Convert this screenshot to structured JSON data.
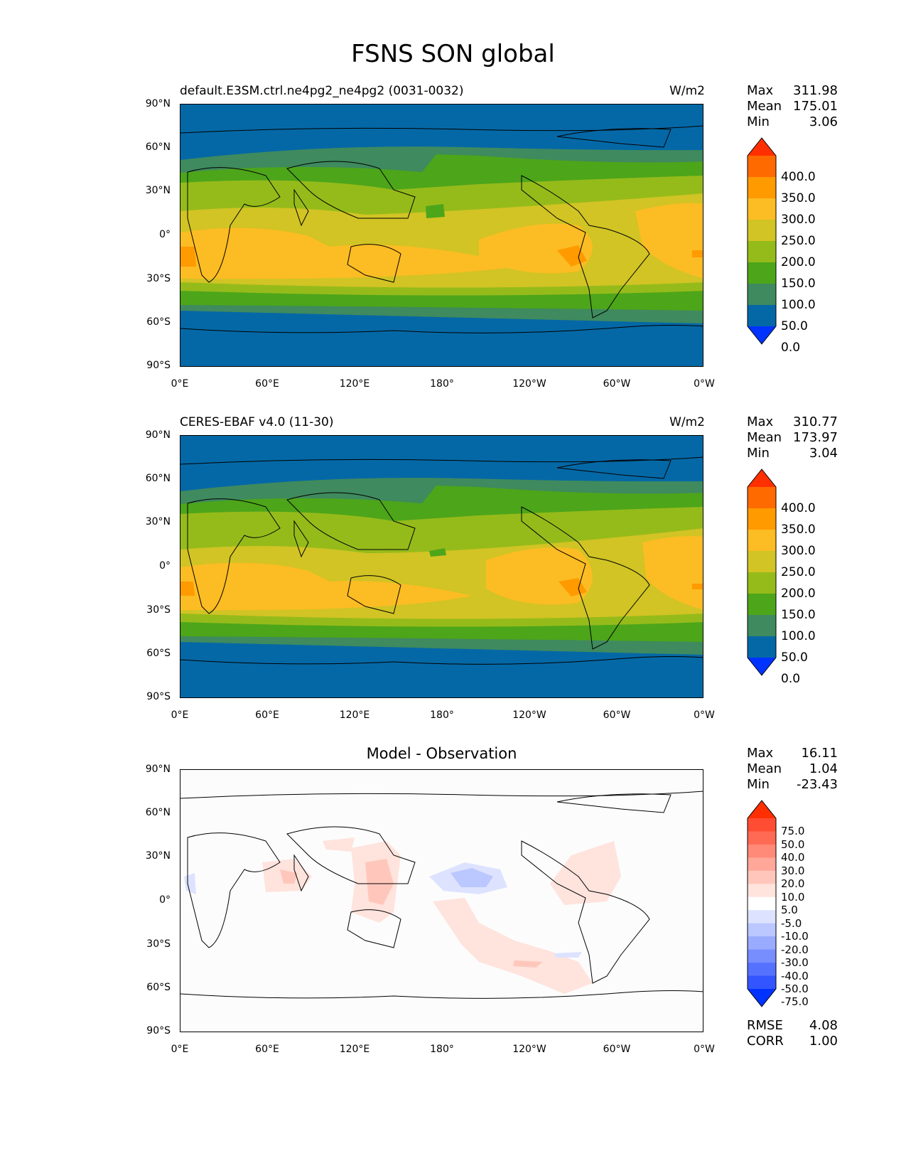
{
  "figure": {
    "title": "FSNS SON global"
  },
  "axes": {
    "lat_labels": [
      "90°N",
      "60°N",
      "30°N",
      "0°",
      "30°S",
      "60°S",
      "90°S"
    ],
    "lon_labels": [
      "0°E",
      "60°E",
      "120°E",
      "180°",
      "120°W",
      "60°W",
      "0°W"
    ]
  },
  "panels": [
    {
      "title_left": "default.E3SM.ctrl.ne4pg2_ne4pg2 (0031-0032)",
      "title_center": "",
      "units": "W/m2",
      "stats": [
        {
          "label": "Max",
          "value": "311.98"
        },
        {
          "label": "Mean",
          "value": "175.01"
        },
        {
          "label": "Min",
          "value": "3.06"
        }
      ],
      "colorbar": {
        "labels": [
          "400.0",
          "350.0",
          "300.0",
          "250.0",
          "200.0",
          "150.0",
          "100.0",
          "50.0",
          "0.0"
        ],
        "colors": [
          "#ff2f00",
          "#ff6a00",
          "#ff9a00",
          "#fcbc23",
          "#d1c424",
          "#95bb1a",
          "#4da51a",
          "#3f8a5e",
          "#0568a6",
          "#0033ff"
        ]
      },
      "metrics": []
    },
    {
      "title_left": "CERES-EBAF v4.0 (11-30)",
      "title_center": "",
      "units": "W/m2",
      "stats": [
        {
          "label": "Max",
          "value": "310.77"
        },
        {
          "label": "Mean",
          "value": "173.97"
        },
        {
          "label": "Min",
          "value": "3.04"
        }
      ],
      "colorbar": {
        "labels": [
          "400.0",
          "350.0",
          "300.0",
          "250.0",
          "200.0",
          "150.0",
          "100.0",
          "50.0",
          "0.0"
        ],
        "colors": [
          "#ff2f00",
          "#ff6a00",
          "#ff9a00",
          "#fcbc23",
          "#d1c424",
          "#95bb1a",
          "#4da51a",
          "#3f8a5e",
          "#0568a6",
          "#0033ff"
        ]
      },
      "metrics": []
    },
    {
      "title_left": "",
      "title_center": "Model - Observation",
      "units": "",
      "stats": [
        {
          "label": "Max",
          "value": "16.11"
        },
        {
          "label": "Mean",
          "value": "1.04"
        },
        {
          "label": "Min",
          "value": "-23.43"
        }
      ],
      "colorbar": {
        "labels": [
          "75.0",
          "50.0",
          "40.0",
          "30.0",
          "20.0",
          "10.0",
          "5.0",
          "-5.0",
          "-10.0",
          "-20.0",
          "-30.0",
          "-40.0",
          "-50.0",
          "-75.0"
        ],
        "colors": [
          "#ff2f00",
          "#ff4d33",
          "#ff6a55",
          "#ff8a77",
          "#ffa899",
          "#ffc7bb",
          "#ffe3dd",
          "#ffffff",
          "#dde3ff",
          "#bbc7ff",
          "#99abff",
          "#778eff",
          "#5572ff",
          "#3355ff",
          "#0033ff"
        ]
      },
      "metrics": [
        {
          "label": "RMSE",
          "value": "4.08"
        },
        {
          "label": "CORR",
          "value": "1.00"
        }
      ]
    }
  ]
}
